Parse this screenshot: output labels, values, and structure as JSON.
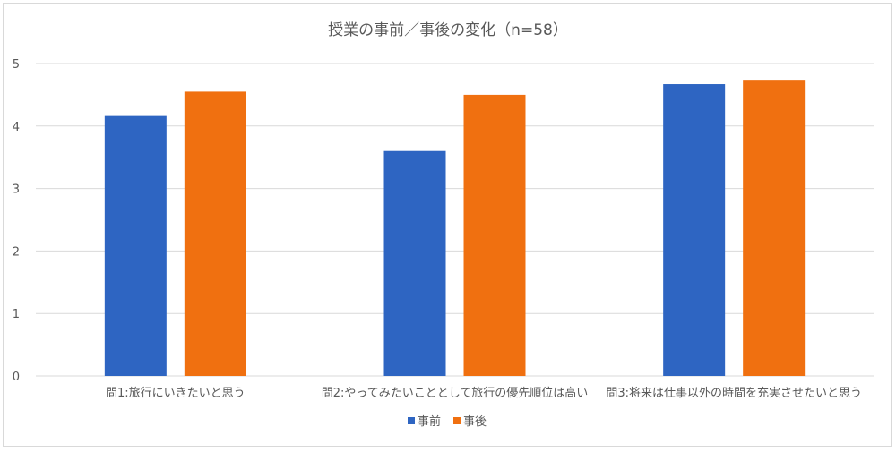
{
  "chart_data": {
    "type": "bar",
    "title": "授業の事前／事後の変化（n=58）",
    "categories": [
      "問1:旅行にいきたいと思う",
      "問2:やってみたいこととして旅行の優先順位は高い",
      "問3:将来は仕事以外の時間を充実させたいと思う"
    ],
    "series": [
      {
        "name": "事前",
        "values": [
          4.16,
          3.6,
          4.67
        ],
        "color": "#2e65c2"
      },
      {
        "name": "事後",
        "values": [
          4.55,
          4.5,
          4.74
        ],
        "color": "#f07010"
      }
    ],
    "ylim": [
      0,
      5
    ],
    "yticks": [
      "0",
      "1",
      "2",
      "3",
      "4",
      "5"
    ],
    "grid": true,
    "legend_position": "bottom"
  }
}
